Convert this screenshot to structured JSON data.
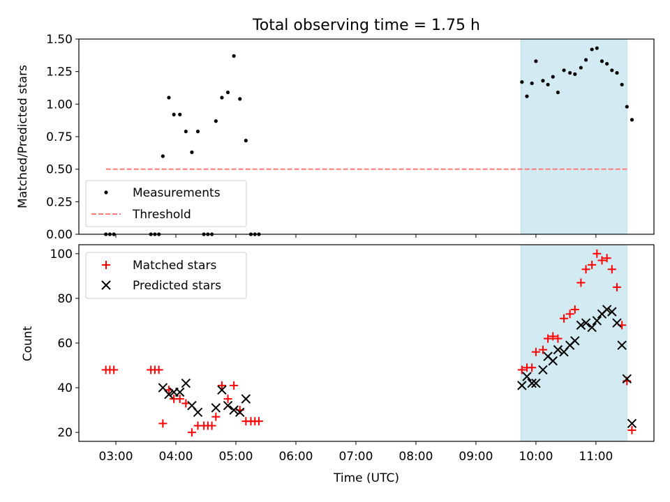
{
  "title": "Total observing time = 1.75 h",
  "chart_data": [
    {
      "type": "scatter",
      "ylabel": "Matched/Predicted stars",
      "xlim": [
        "02:23",
        "11:58"
      ],
      "ylim": [
        0,
        1.5
      ],
      "yticks": [
        "0.00",
        "0.25",
        "0.50",
        "0.75",
        "1.00",
        "1.25",
        "1.50"
      ],
      "highlight_span": {
        "start": "09:45",
        "end": "11:31",
        "color": "#add8e6"
      },
      "legend": {
        "placement": "lower-left",
        "entries": [
          "Measurements",
          "Threshold"
        ]
      },
      "threshold": {
        "name": "Threshold",
        "y": 0.5,
        "x_range": [
          "02:50",
          "11:31"
        ],
        "color": "#ff7777",
        "style": "dashed"
      },
      "series": [
        {
          "name": "Measurements",
          "color": "#000000",
          "marker": "dot",
          "points": [
            [
              "02:50",
              0
            ],
            [
              "02:54",
              0
            ],
            [
              "02:58",
              0
            ],
            [
              "03:35",
              0
            ],
            [
              "03:39",
              0
            ],
            [
              "03:43",
              0
            ],
            [
              "03:47",
              0.6
            ],
            [
              "03:53",
              1.05
            ],
            [
              "03:58",
              0.92
            ],
            [
              "04:04",
              0.92
            ],
            [
              "04:10",
              0.79
            ],
            [
              "04:16",
              0.63
            ],
            [
              "04:22",
              0.79
            ],
            [
              "04:28",
              0
            ],
            [
              "04:32",
              0
            ],
            [
              "04:36",
              0
            ],
            [
              "04:40",
              0.87
            ],
            [
              "04:46",
              1.05
            ],
            [
              "04:52",
              1.09
            ],
            [
              "04:58",
              1.37
            ],
            [
              "05:04",
              1.04
            ],
            [
              "05:10",
              0.72
            ],
            [
              "05:15",
              0
            ],
            [
              "05:19",
              0
            ],
            [
              "05:23",
              0
            ],
            [
              "09:46",
              1.17
            ],
            [
              "09:51",
              1.06
            ],
            [
              "09:56",
              1.16
            ],
            [
              "10:00",
              1.33
            ],
            [
              "10:07",
              1.18
            ],
            [
              "10:12",
              1.15
            ],
            [
              "10:17",
              1.21
            ],
            [
              "10:22",
              1.09
            ],
            [
              "10:28",
              1.26
            ],
            [
              "10:34",
              1.24
            ],
            [
              "10:39",
              1.23
            ],
            [
              "10:45",
              1.28
            ],
            [
              "10:50",
              1.34
            ],
            [
              "10:56",
              1.42
            ],
            [
              "11:01",
              1.43
            ],
            [
              "11:06",
              1.33
            ],
            [
              "11:11",
              1.31
            ],
            [
              "11:16",
              1.26
            ],
            [
              "11:21",
              1.24
            ],
            [
              "11:26",
              1.15
            ],
            [
              "11:31",
              0.98
            ],
            [
              "11:36",
              0.88
            ]
          ]
        }
      ]
    },
    {
      "type": "scatter",
      "xlabel": "Time (UTC)",
      "ylabel": "Count",
      "xlim": [
        "02:23",
        "11:58"
      ],
      "ylim": [
        16,
        104
      ],
      "yticks": [
        "20",
        "40",
        "60",
        "80",
        "100"
      ],
      "xticks": [
        "03:00",
        "04:00",
        "05:00",
        "06:00",
        "07:00",
        "08:00",
        "09:00",
        "10:00",
        "11:00"
      ],
      "highlight_span": {
        "start": "09:45",
        "end": "11:31",
        "color": "#add8e6"
      },
      "legend": {
        "placement": "top-left",
        "entries": [
          "Matched stars",
          "Predicted stars"
        ]
      },
      "series": [
        {
          "name": "Matched stars",
          "color": "#ff0000",
          "marker": "plus",
          "points": [
            [
              "02:50",
              48
            ],
            [
              "02:54",
              48
            ],
            [
              "02:58",
              48
            ],
            [
              "03:35",
              48
            ],
            [
              "03:39",
              48
            ],
            [
              "03:43",
              48
            ],
            [
              "03:47",
              24
            ],
            [
              "03:53",
              39
            ],
            [
              "03:58",
              35
            ],
            [
              "04:04",
              35
            ],
            [
              "04:10",
              33
            ],
            [
              "04:16",
              20
            ],
            [
              "04:22",
              23
            ],
            [
              "04:28",
              23
            ],
            [
              "04:32",
              23
            ],
            [
              "04:36",
              23
            ],
            [
              "04:40",
              27
            ],
            [
              "04:46",
              41
            ],
            [
              "04:52",
              35
            ],
            [
              "04:58",
              41
            ],
            [
              "05:04",
              30
            ],
            [
              "05:10",
              25
            ],
            [
              "05:15",
              25
            ],
            [
              "05:19",
              25
            ],
            [
              "05:23",
              25
            ],
            [
              "09:46",
              48
            ],
            [
              "09:51",
              49
            ],
            [
              "09:56",
              49
            ],
            [
              "10:00",
              56
            ],
            [
              "10:07",
              57
            ],
            [
              "10:12",
              62
            ],
            [
              "10:17",
              63
            ],
            [
              "10:22",
              62
            ],
            [
              "10:28",
              71
            ],
            [
              "10:34",
              73
            ],
            [
              "10:39",
              75
            ],
            [
              "10:45",
              87
            ],
            [
              "10:50",
              93
            ],
            [
              "10:56",
              95
            ],
            [
              "11:01",
              100
            ],
            [
              "11:06",
              97
            ],
            [
              "11:11",
              98
            ],
            [
              "11:16",
              93
            ],
            [
              "11:21",
              85
            ],
            [
              "11:26",
              68
            ],
            [
              "11:31",
              43
            ],
            [
              "11:36",
              21
            ]
          ]
        },
        {
          "name": "Predicted stars",
          "color": "#000000",
          "marker": "x",
          "points": [
            [
              "03:47",
              40
            ],
            [
              "03:53",
              37
            ],
            [
              "03:58",
              38
            ],
            [
              "04:04",
              38
            ],
            [
              "04:10",
              42
            ],
            [
              "04:16",
              32
            ],
            [
              "04:22",
              29
            ],
            [
              "04:40",
              31
            ],
            [
              "04:46",
              39
            ],
            [
              "04:52",
              32
            ],
            [
              "04:58",
              30
            ],
            [
              "05:04",
              29
            ],
            [
              "05:10",
              35
            ],
            [
              "09:46",
              41
            ],
            [
              "09:51",
              45
            ],
            [
              "09:56",
              42
            ],
            [
              "10:00",
              42
            ],
            [
              "10:07",
              48
            ],
            [
              "10:12",
              54
            ],
            [
              "10:17",
              52
            ],
            [
              "10:22",
              57
            ],
            [
              "10:28",
              56
            ],
            [
              "10:34",
              59
            ],
            [
              "10:39",
              61
            ],
            [
              "10:45",
              68
            ],
            [
              "10:50",
              69
            ],
            [
              "10:56",
              67
            ],
            [
              "11:01",
              70
            ],
            [
              "11:06",
              73
            ],
            [
              "11:11",
              75
            ],
            [
              "11:16",
              74
            ],
            [
              "11:21",
              69
            ],
            [
              "11:26",
              59
            ],
            [
              "11:31",
              44
            ],
            [
              "11:36",
              24
            ]
          ]
        }
      ]
    }
  ]
}
